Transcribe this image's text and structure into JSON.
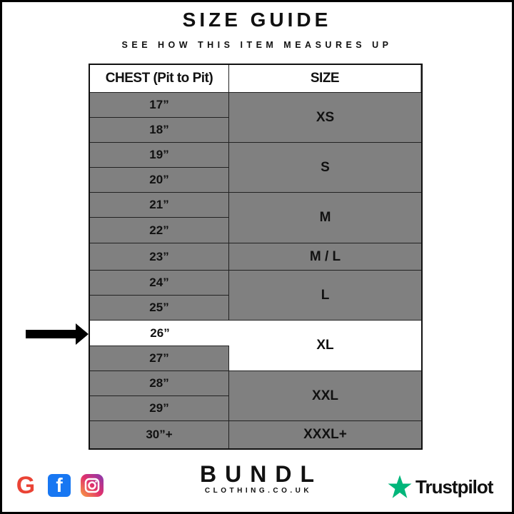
{
  "title": "SIZE GUIDE",
  "subtitle": "SEE HOW THIS ITEM MEASURES UP",
  "table": {
    "headers": [
      "CHEST (Pit to Pit)",
      "SIZE"
    ],
    "chest": [
      "17”",
      "18”",
      "19”",
      "20”",
      "21”",
      "22”",
      "23”",
      "24”",
      "25”",
      "26”",
      "27”",
      "28”",
      "29”",
      "30”+"
    ],
    "sizes": [
      "XS",
      "S",
      "M",
      "M / L",
      "L",
      "XL",
      "XXL",
      "XXXL+"
    ],
    "highlighted_chest": "26”",
    "highlighted_size": "XL"
  },
  "colors": {
    "cell": "#808080",
    "highlight": "#ffffff",
    "trustpilot": "#00b67a"
  },
  "footer": {
    "social_icons": [
      "google-icon",
      "facebook-icon",
      "instagram-icon"
    ],
    "brand": "BUNDL",
    "brand_sub": "CLOTHING.CO.UK",
    "trustpilot": "Trustpilot"
  }
}
